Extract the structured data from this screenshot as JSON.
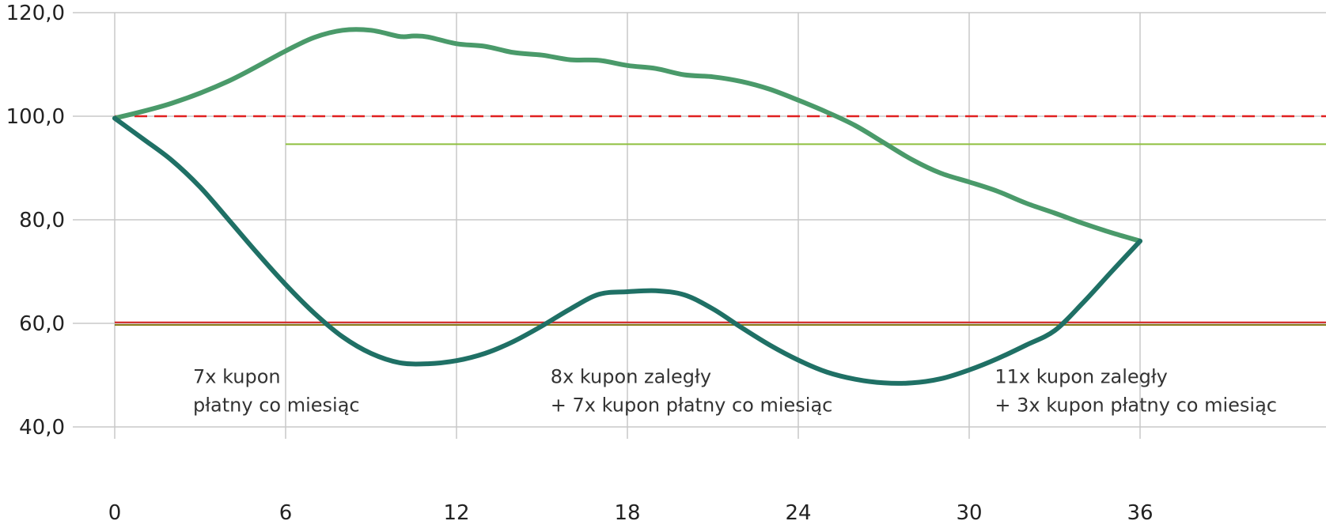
{
  "chart_data": {
    "type": "line",
    "title": "",
    "xlabel": "",
    "ylabel": "",
    "xlim": [
      0,
      42
    ],
    "ylim": [
      40,
      120
    ],
    "x_ticks": [
      0,
      6,
      12,
      18,
      24,
      30,
      36
    ],
    "x_tick_labels": [
      "0",
      "6",
      "12",
      "18",
      "24",
      "30",
      "36"
    ],
    "y_ticks": [
      40,
      60,
      80,
      100,
      120
    ],
    "y_tick_labels": [
      "40,0",
      "60,0",
      "80,0",
      "100,0",
      "120,0"
    ],
    "grid": true,
    "legend": "none",
    "series": [
      {
        "color": "#4a9a6a",
        "x": [
          0,
          2,
          4,
          6,
          7,
          8,
          9,
          10,
          10.5,
          11,
          12,
          13,
          14,
          15,
          16,
          17,
          18,
          19,
          20,
          21,
          22,
          23,
          24,
          25,
          26,
          27,
          28,
          29,
          30,
          31,
          32,
          33,
          34,
          35,
          36
        ],
        "y": [
          99.6,
          102.5,
          106.8,
          112.6,
          115.2,
          116.6,
          116.6,
          115.4,
          115.5,
          115.3,
          114.0,
          113.5,
          112.3,
          111.8,
          110.9,
          110.8,
          109.8,
          109.2,
          108.0,
          107.6,
          106.7,
          105.2,
          103.1,
          100.8,
          98.2,
          94.9,
          91.6,
          89.0,
          87.3,
          85.5,
          83.2,
          81.3,
          79.3,
          77.5,
          75.9
        ]
      },
      {
        "color": "#1f7065",
        "x": [
          0,
          1,
          2,
          3,
          4,
          5,
          6,
          7,
          8,
          9,
          10,
          11,
          12,
          13,
          14,
          15,
          16,
          17,
          18,
          19,
          20,
          21,
          22,
          23,
          24,
          25,
          26,
          27,
          28,
          29,
          30,
          31,
          32,
          33,
          34,
          35,
          36
        ],
        "y": [
          99.6,
          95.6,
          91.5,
          86.3,
          80.0,
          73.6,
          67.5,
          62.0,
          57.4,
          54.2,
          52.4,
          52.2,
          52.8,
          54.2,
          56.5,
          59.5,
          62.8,
          65.6,
          66.1,
          66.3,
          65.5,
          62.8,
          59.2,
          55.8,
          52.9,
          50.6,
          49.2,
          48.5,
          48.5,
          49.3,
          51.0,
          53.2,
          55.8,
          58.6,
          64.0,
          70.0,
          75.9
        ]
      }
    ],
    "reference_lines": [
      {
        "y": 100,
        "color": "#e02020",
        "style": "dashed",
        "x_start": 0,
        "x_end": 42
      },
      {
        "y": 94.6,
        "color": "#8fbf3f",
        "style": "solid",
        "x_start": 6,
        "x_end": 42
      },
      {
        "y": 60.2,
        "color": "#d42020",
        "style": "solid",
        "x_start": 0,
        "x_end": 42
      },
      {
        "y": 59.7,
        "color": "#8a7a18",
        "style": "solid",
        "x_start": 0,
        "x_end": 42
      }
    ],
    "annotations": [
      {
        "lines": [
          "7x kupon",
          "płatny co miesiąc"
        ],
        "x": 2.75,
        "y": 48.5
      },
      {
        "lines": [
          "8x kupon zaległy",
          "+ 7x kupon płatny co miesiąc"
        ],
        "x": 15.3,
        "y": 48.5
      },
      {
        "lines": [
          "11x kupon zaległy",
          "+ 3x kupon płatny co miesiąc"
        ],
        "x": 30.9,
        "y": 48.5
      }
    ],
    "colors": {
      "grid": "#c8c8c8",
      "axis": "#bdbdbd"
    }
  }
}
